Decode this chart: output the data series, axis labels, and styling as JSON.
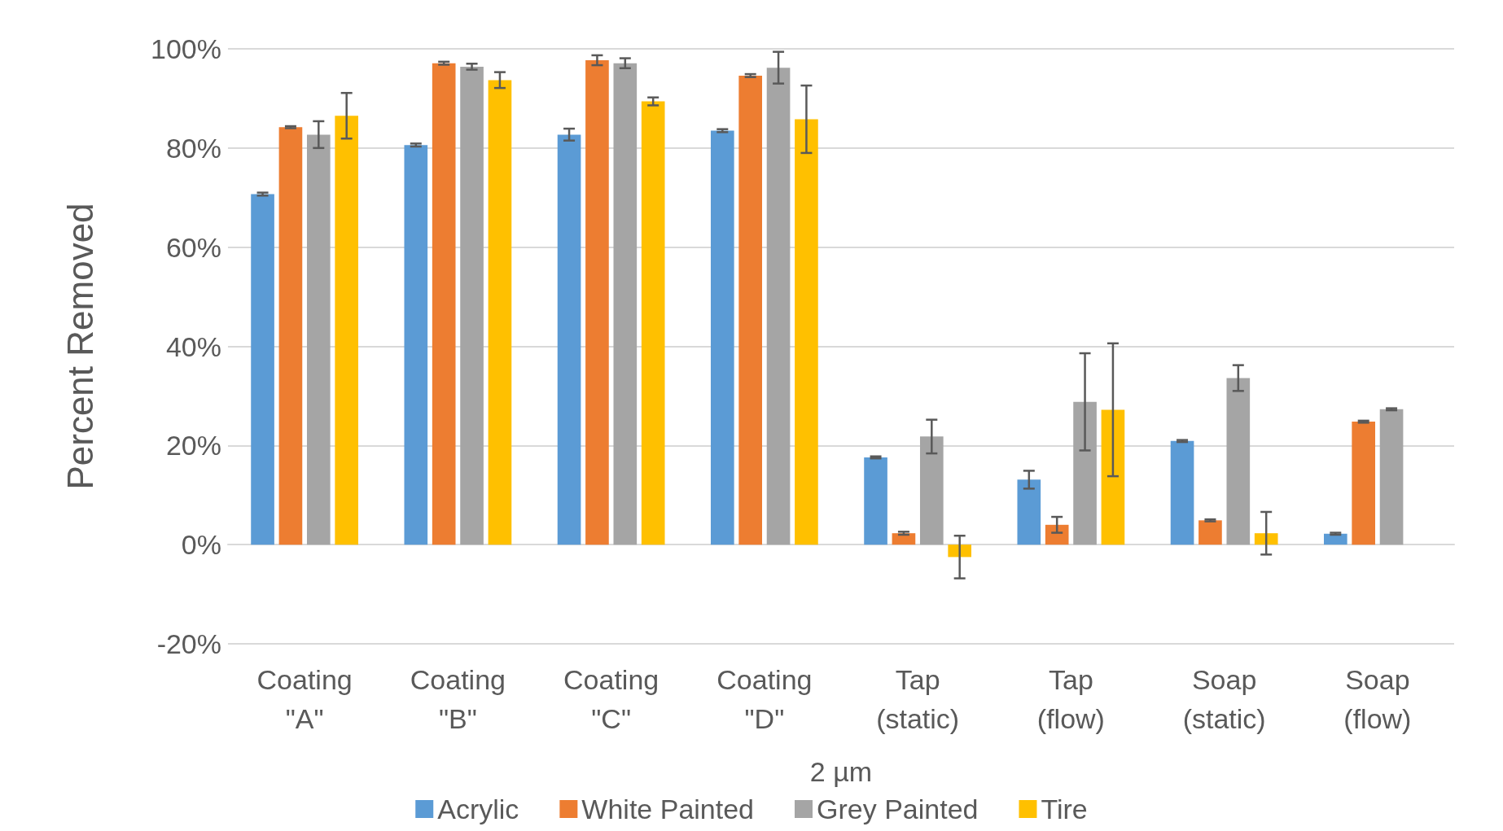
{
  "chart_data": {
    "type": "bar",
    "ylabel": "Percent Removed",
    "xlabel": "2 µm",
    "categories": [
      "Coating \"A\"",
      "Coating \"B\"",
      "Coating \"C\"",
      "Coating \"D\"",
      "Tap (static)",
      "Tap (flow)",
      "Soap (static)",
      "Soap (flow)"
    ],
    "series": [
      {
        "name": "Acrylic",
        "color": "#5b9bd5",
        "values": [
          70.7,
          80.6,
          82.7,
          83.5,
          17.6,
          13.1,
          20.9,
          2.2
        ],
        "errors": [
          0.3,
          0.3,
          1.2,
          0.3,
          0.2,
          1.8,
          0.2,
          0.2
        ]
      },
      {
        "name": "White Painted",
        "color": "#ed7d31",
        "values": [
          84.2,
          97.1,
          97.7,
          94.6,
          2.3,
          4.0,
          4.9,
          24.8
        ],
        "errors": [
          0.2,
          0.3,
          1.0,
          0.3,
          0.3,
          1.6,
          0.2,
          0.2
        ]
      },
      {
        "name": "Grey Painted",
        "color": "#a5a5a5",
        "values": [
          82.7,
          96.4,
          97.1,
          96.2,
          21.8,
          28.8,
          33.6,
          27.3
        ],
        "errors": [
          2.7,
          0.6,
          1.0,
          3.2,
          3.4,
          9.8,
          2.6,
          0.2
        ]
      },
      {
        "name": "Tire",
        "color": "#ffc000",
        "values": [
          86.5,
          93.7,
          89.4,
          85.8,
          -2.5,
          27.2,
          2.3,
          null
        ],
        "errors": [
          4.6,
          1.6,
          0.8,
          6.8,
          4.3,
          13.4,
          4.3,
          null
        ]
      }
    ],
    "ylim": [
      -20,
      100
    ],
    "yticks": [
      {
        "value": -20,
        "label": "-20%"
      },
      {
        "value": 0,
        "label": "0%"
      },
      {
        "value": 20,
        "label": "20%"
      },
      {
        "value": 40,
        "label": "40%"
      },
      {
        "value": 60,
        "label": "60%"
      },
      {
        "value": 80,
        "label": "80%"
      },
      {
        "value": 100,
        "label": "100%"
      }
    ],
    "grid": "y",
    "legend": "bottom"
  }
}
